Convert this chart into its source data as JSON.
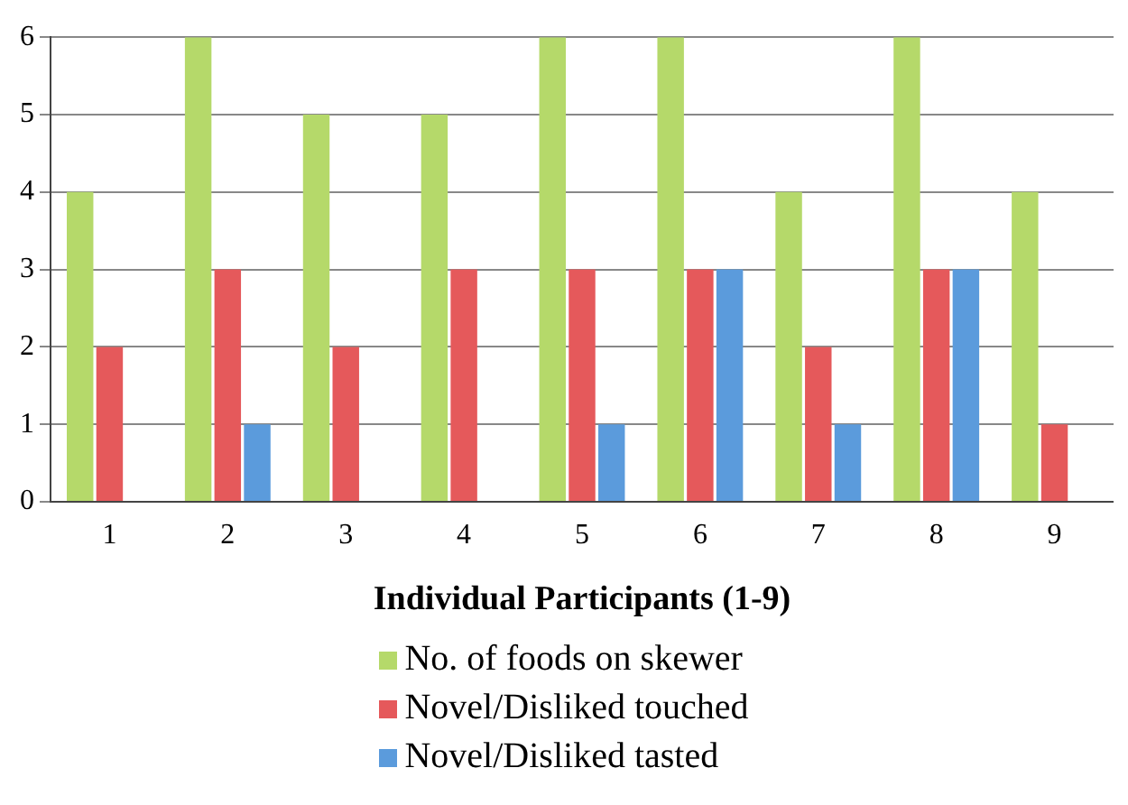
{
  "chart_data": {
    "type": "bar",
    "xlabel": "Individual Participants (1-9)",
    "categories": [
      "1",
      "2",
      "3",
      "4",
      "5",
      "6",
      "7",
      "8",
      "9"
    ],
    "series": [
      {
        "name": "No. of foods on skewer",
        "color": "#b5d96a",
        "values": [
          4,
          6,
          5,
          5,
          6,
          6,
          4,
          6,
          4
        ]
      },
      {
        "name": "Novel/Disliked touched",
        "color": "#e5595b",
        "values": [
          2,
          3,
          2,
          3,
          3,
          3,
          2,
          3,
          1
        ]
      },
      {
        "name": "Novel/Disliked tasted",
        "color": "#5b9bdc",
        "values": [
          0,
          1,
          0,
          0,
          1,
          3,
          1,
          3,
          0
        ]
      }
    ],
    "ylim": [
      0,
      6
    ],
    "yticks": [
      0,
      1,
      2,
      3,
      4,
      5,
      6
    ],
    "grid": "y",
    "legend": "bottom"
  }
}
